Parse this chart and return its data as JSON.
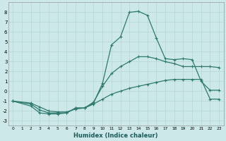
{
  "xlabel": "Humidex (Indice chaleur)",
  "background_color": "#cce8e8",
  "grid_color": "#b8d8d8",
  "line_color": "#2e7a6e",
  "xlim": [
    -0.5,
    23.5
  ],
  "ylim": [
    -3.5,
    9.0
  ],
  "xticks": [
    0,
    1,
    2,
    3,
    4,
    5,
    6,
    7,
    8,
    9,
    10,
    11,
    12,
    13,
    14,
    15,
    16,
    17,
    18,
    19,
    20,
    21,
    22,
    23
  ],
  "yticks": [
    -3,
    -2,
    -1,
    0,
    1,
    2,
    3,
    4,
    5,
    6,
    7,
    8
  ],
  "series": [
    {
      "x": [
        0,
        2,
        3,
        4,
        5,
        6,
        7,
        8,
        9,
        10,
        11,
        12,
        13,
        14,
        15,
        16,
        17,
        18,
        19,
        20,
        21,
        22,
        23
      ],
      "y": [
        -1.0,
        -1.5,
        -2.2,
        -2.3,
        -2.3,
        -2.2,
        -1.7,
        -1.7,
        -1.2,
        0.8,
        4.7,
        5.5,
        8.0,
        8.1,
        7.7,
        5.4,
        3.3,
        3.2,
        3.3,
        3.2,
        1.0,
        0.1,
        0.1
      ]
    },
    {
      "x": [
        0,
        2,
        3,
        4,
        5,
        6,
        7,
        8,
        9,
        10,
        11,
        12,
        13,
        14,
        15,
        16,
        17,
        18,
        19,
        20,
        21,
        22,
        23
      ],
      "y": [
        -1.0,
        -1.3,
        -1.9,
        -2.2,
        -2.2,
        -2.2,
        -1.7,
        -1.7,
        -1.1,
        0.5,
        1.8,
        2.5,
        3.0,
        3.5,
        3.5,
        3.3,
        3.0,
        2.8,
        2.5,
        2.5,
        2.5,
        2.5,
        2.4
      ]
    },
    {
      "x": [
        0,
        2,
        3,
        4,
        5,
        6,
        7,
        8,
        9,
        10,
        11,
        12,
        13,
        14,
        15,
        16,
        17,
        18,
        19,
        20,
        21,
        22,
        23
      ],
      "y": [
        -1.0,
        -1.2,
        -1.6,
        -2.0,
        -2.1,
        -2.1,
        -1.8,
        -1.7,
        -1.3,
        -0.8,
        -0.3,
        0.0,
        0.3,
        0.5,
        0.7,
        0.9,
        1.1,
        1.2,
        1.2,
        1.2,
        1.2,
        -0.8,
        -0.8
      ]
    }
  ]
}
